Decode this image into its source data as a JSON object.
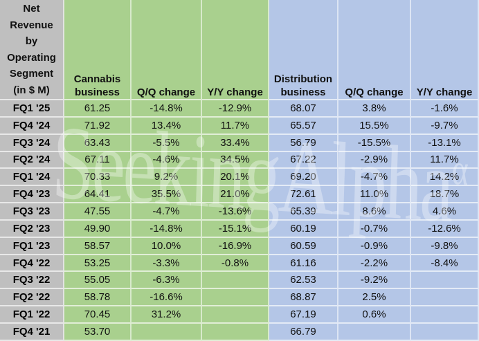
{
  "table": {
    "title": "Net\nRevenue\nby\nOperating\nSegment\n(in $ M)",
    "columns": [
      "Cannabis business",
      "Q/Q change",
      "Y/Y change",
      "Distribution business",
      "Q/Q change",
      "Y/Y change"
    ],
    "rows": [
      [
        "FQ1 '25",
        "61.25",
        "-14.8%",
        "-12.9%",
        "68.07",
        "3.8%",
        "-1.6%"
      ],
      [
        "FQ4 '24",
        "71.92",
        "13.4%",
        "11.7%",
        "65.57",
        "15.5%",
        "-9.7%"
      ],
      [
        "FQ3 '24",
        "63.43",
        "-5.5%",
        "33.4%",
        "56.79",
        "-15.5%",
        "-13.1%"
      ],
      [
        "FQ2 '24",
        "67.11",
        "-4.6%",
        "34.5%",
        "67.22",
        "-2.9%",
        "11.7%"
      ],
      [
        "FQ1 '24",
        "70.33",
        "9.2%",
        "20.1%",
        "69.20",
        "-4.7%",
        "14.2%"
      ],
      [
        "FQ4 '23",
        "64.41",
        "35.5%",
        "21.0%",
        "72.61",
        "11.0%",
        "18.7%"
      ],
      [
        "FQ3 '23",
        "47.55",
        "-4.7%",
        "-13.6%",
        "65.39",
        "8.6%",
        "4.6%"
      ],
      [
        "FQ2 '23",
        "49.90",
        "-14.8%",
        "-15.1%",
        "60.19",
        "-0.7%",
        "-12.6%"
      ],
      [
        "FQ1 '23",
        "58.57",
        "10.0%",
        "-16.9%",
        "60.59",
        "-0.9%",
        "-9.8%"
      ],
      [
        "FQ4 '22",
        "53.25",
        "-3.3%",
        "-0.8%",
        "61.16",
        "-2.2%",
        "-8.4%"
      ],
      [
        "FQ3 '22",
        "55.05",
        "-6.3%",
        "",
        "62.53",
        "-9.2%",
        ""
      ],
      [
        "FQ2 '22",
        "58.78",
        "-16.6%",
        "",
        "68.87",
        "2.5%",
        ""
      ],
      [
        "FQ1 '22",
        "70.45",
        "31.2%",
        "",
        "67.19",
        "0.6%",
        ""
      ],
      [
        "FQ4 '21",
        "53.70",
        "",
        "",
        "66.79",
        "",
        ""
      ]
    ]
  },
  "watermark": {
    "text": "SeekingAlpha",
    "symbol": "α"
  },
  "colors": {
    "row_header_gray": "#bfbfbf",
    "cannabis_green": "#a9d08e",
    "distribution_blue": "#b4c6e7",
    "text": "#111111",
    "gridline": "#ffffff"
  },
  "chart_data": {
    "type": "table",
    "title": "Net Revenue by Operating Segment (in $ M)",
    "categories": [
      "FQ1 '25",
      "FQ4 '24",
      "FQ3 '24",
      "FQ2 '24",
      "FQ1 '24",
      "FQ4 '23",
      "FQ3 '23",
      "FQ2 '23",
      "FQ1 '23",
      "FQ4 '22",
      "FQ3 '22",
      "FQ2 '22",
      "FQ1 '22",
      "FQ4 '21"
    ],
    "series": [
      {
        "name": "Cannabis business ($M)",
        "values": [
          61.25,
          71.92,
          63.43,
          67.11,
          70.33,
          64.41,
          47.55,
          49.9,
          58.57,
          53.25,
          55.05,
          58.78,
          70.45,
          53.7
        ]
      },
      {
        "name": "Cannabis Q/Q change",
        "values": [
          "-14.8%",
          "13.4%",
          "-5.5%",
          "-4.6%",
          "9.2%",
          "35.5%",
          "-4.7%",
          "-14.8%",
          "10.0%",
          "-3.3%",
          "-6.3%",
          "-16.6%",
          "31.2%",
          null
        ]
      },
      {
        "name": "Cannabis Y/Y change",
        "values": [
          "-12.9%",
          "11.7%",
          "33.4%",
          "34.5%",
          "20.1%",
          "21.0%",
          "-13.6%",
          "-15.1%",
          "-16.9%",
          "-0.8%",
          null,
          null,
          null,
          null
        ]
      },
      {
        "name": "Distribution business ($M)",
        "values": [
          68.07,
          65.57,
          56.79,
          67.22,
          69.2,
          72.61,
          65.39,
          60.19,
          60.59,
          61.16,
          62.53,
          68.87,
          67.19,
          66.79
        ]
      },
      {
        "name": "Distribution Q/Q change",
        "values": [
          "3.8%",
          "15.5%",
          "-15.5%",
          "-2.9%",
          "-4.7%",
          "11.0%",
          "8.6%",
          "-0.7%",
          "-0.9%",
          "-2.2%",
          "-9.2%",
          "2.5%",
          "0.6%",
          null
        ]
      },
      {
        "name": "Distribution Y/Y change",
        "values": [
          "-1.6%",
          "-9.7%",
          "-13.1%",
          "11.7%",
          "14.2%",
          "18.7%",
          "4.6%",
          "-12.6%",
          "-9.8%",
          "-8.4%",
          null,
          null,
          null,
          null
        ]
      }
    ],
    "legend_position": "none",
    "grid": true
  }
}
